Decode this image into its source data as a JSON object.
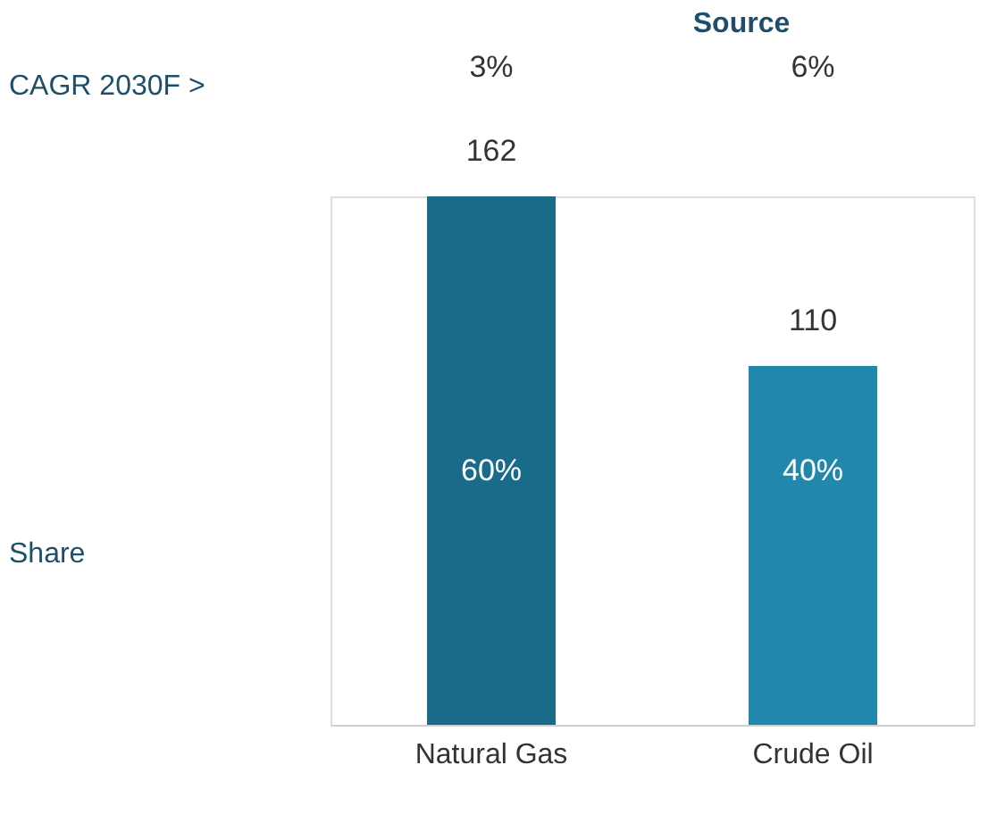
{
  "chart_data": {
    "type": "bar",
    "title": "Source",
    "categories": [
      "Natural Gas",
      "Crude Oil"
    ],
    "values": [
      162,
      110
    ],
    "colors": [
      "#1a6b8a",
      "#2287ad"
    ],
    "data_labels": true,
    "annotations": [
      "CAGR 2030F >",
      "Share",
      "3%",
      "6%",
      "60%",
      "40%"
    ]
  }
}
